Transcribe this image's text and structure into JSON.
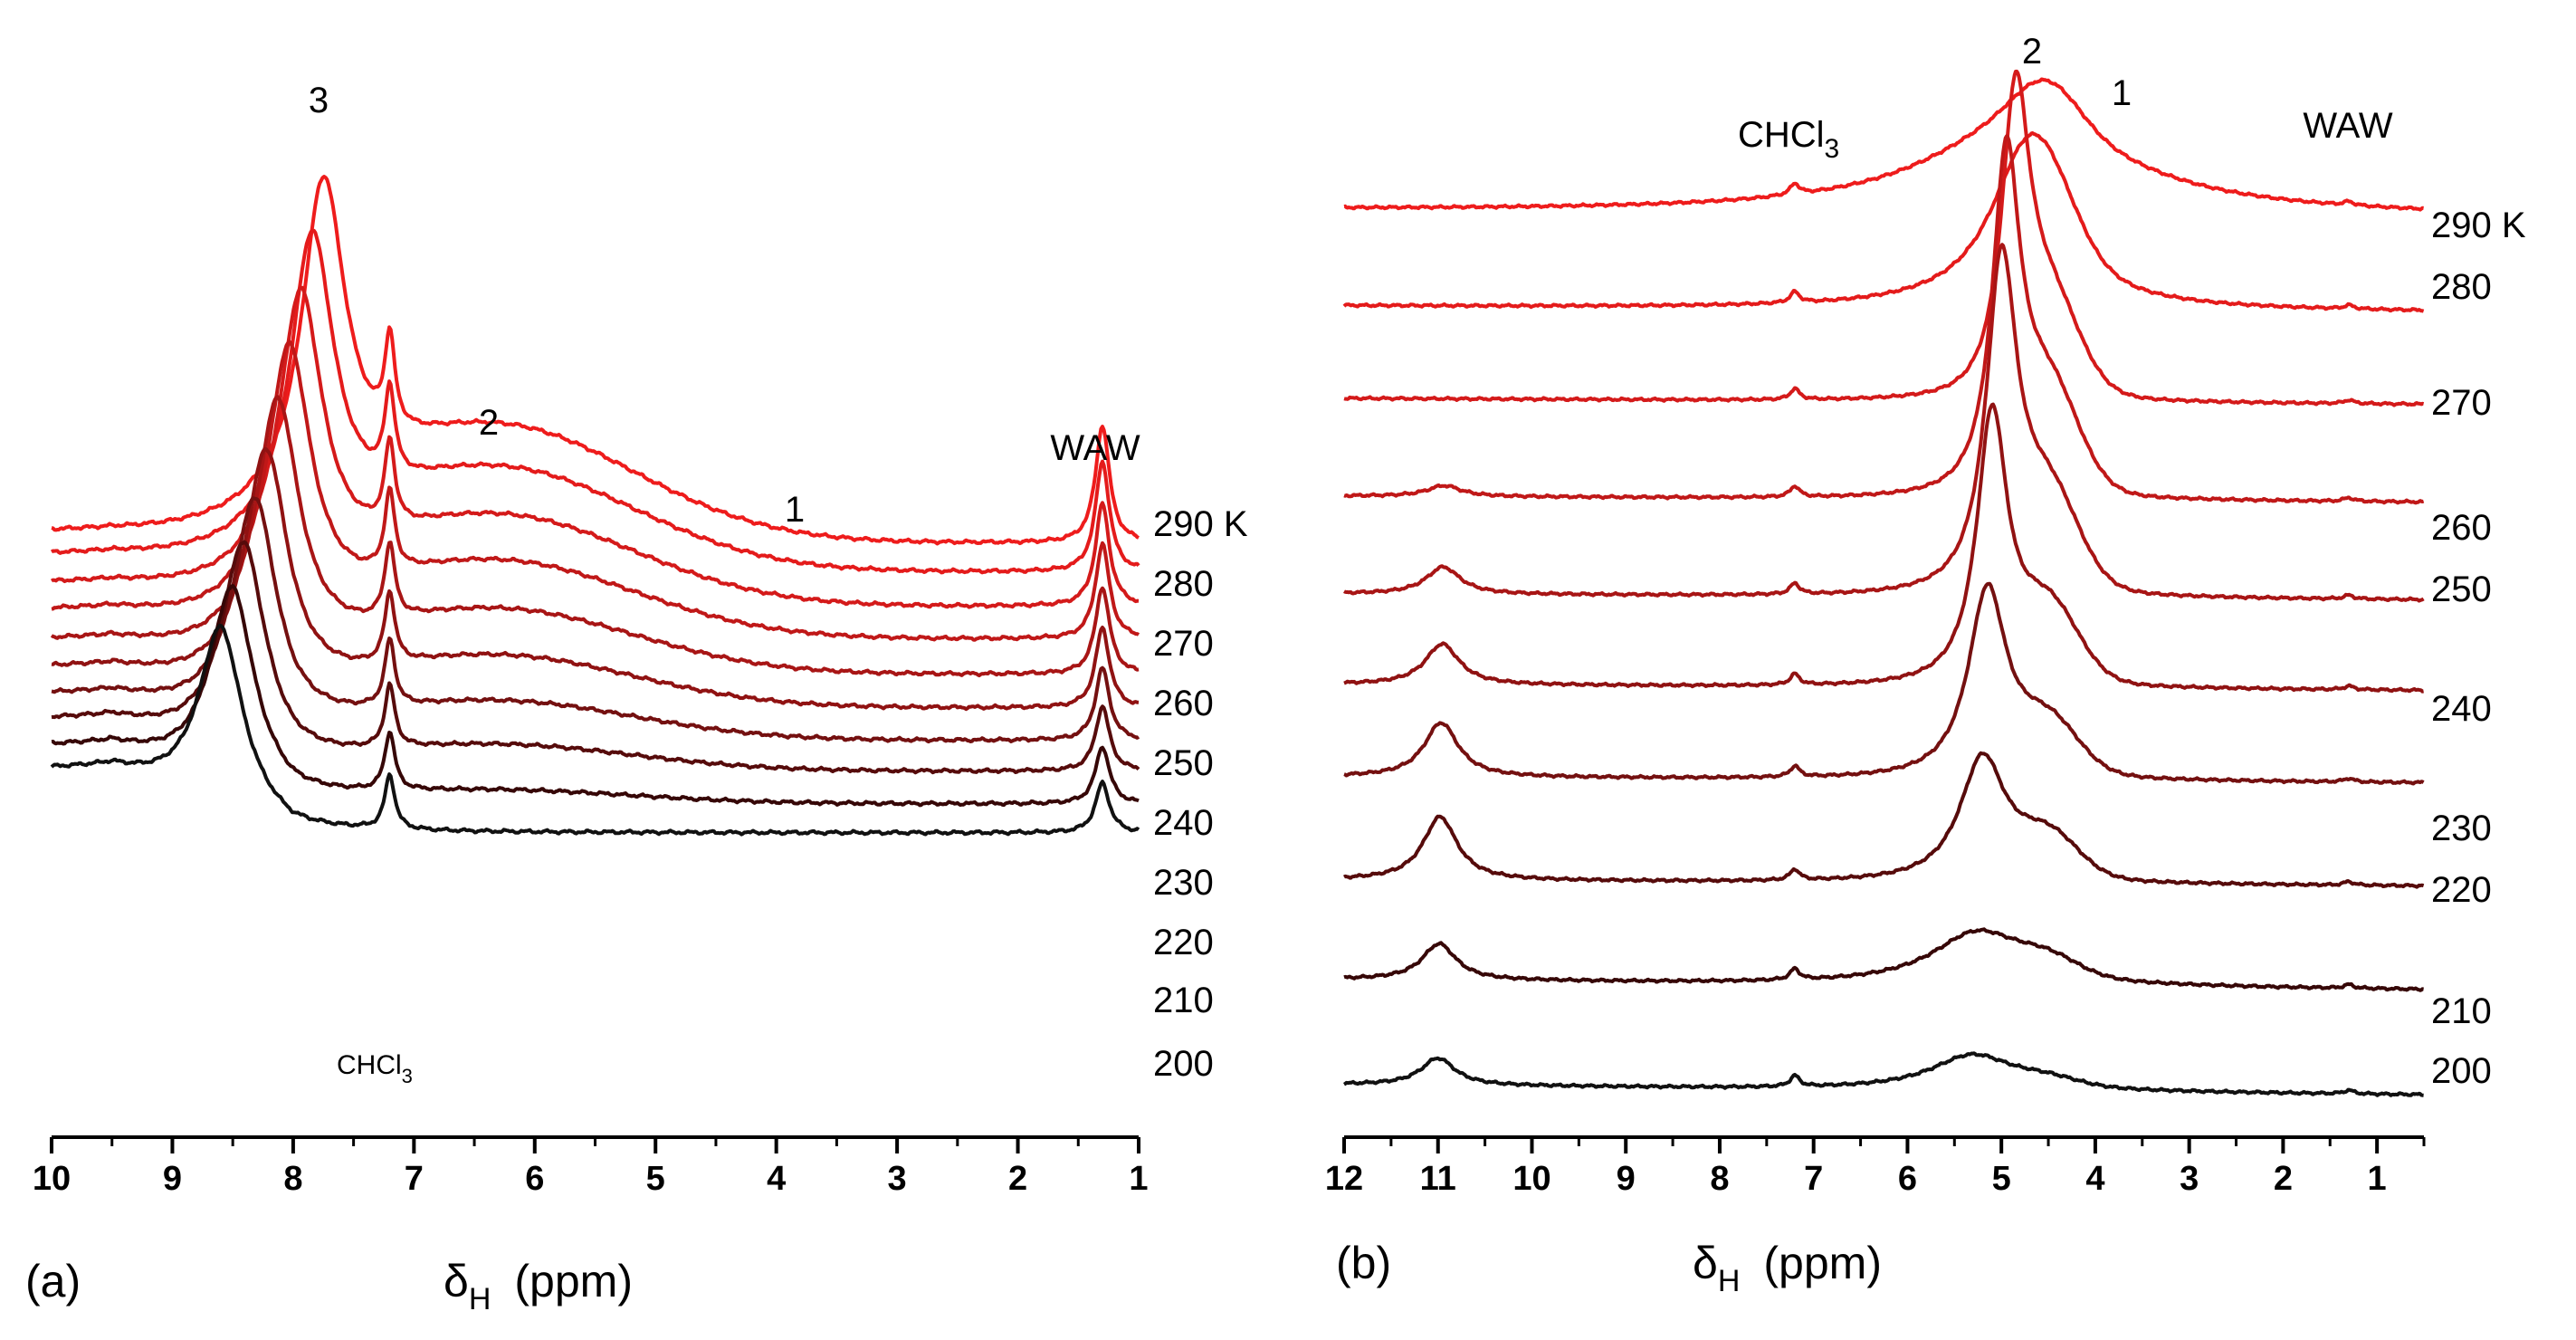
{
  "chart_data": [
    {
      "panel": "(a)",
      "type": "line",
      "title": "",
      "xlabel_main": "δ",
      "xlabel_sub": "H",
      "xlabel_unit": "(ppm)",
      "xlim": [
        10,
        1
      ],
      "xaxis_reversed": true,
      "xticks": [
        "10",
        "9",
        "8",
        "7",
        "6",
        "5",
        "4",
        "3",
        "2",
        "1"
      ],
      "temperature_unit": "K",
      "series_labels": [
        "290 K",
        "280",
        "270",
        "260",
        "250",
        "240",
        "230",
        "220",
        "210",
        "200"
      ],
      "temperatures": [
        290,
        280,
        270,
        260,
        250,
        240,
        230,
        220,
        210,
        200
      ],
      "series_colors": [
        "#ee1c1c",
        "#e41b1b",
        "#d41a1a",
        "#c01818",
        "#a81515",
        "#901212",
        "#741010",
        "#560b0b",
        "#360707",
        "#111111"
      ],
      "annotations": [
        "3",
        "2",
        "1",
        "WAW",
        "CHCl",
        "3"
      ],
      "peaks_ppm": {
        "peak_3": 7.9,
        "chcl3": 7.2,
        "peak_2": 6.3,
        "peak_1": 3.9,
        "waw": 1.3
      }
    },
    {
      "panel": "(b)",
      "type": "line",
      "title": "",
      "xlabel_main": "δ",
      "xlabel_sub": "H",
      "xlabel_unit": "(ppm)",
      "xlim": [
        12,
        0.5
      ],
      "xaxis_reversed": true,
      "xticks": [
        "12",
        "11",
        "10",
        "9",
        "8",
        "7",
        "6",
        "5",
        "4",
        "3",
        "2",
        "1"
      ],
      "temperature_unit": "K",
      "series_labels": [
        "290 K",
        "280",
        "270",
        "260",
        "250",
        "240",
        "230",
        "220",
        "210",
        "200"
      ],
      "temperatures": [
        290,
        280,
        270,
        260,
        250,
        240,
        230,
        220,
        210,
        200
      ],
      "series_colors": [
        "#ee1c1c",
        "#e41b1b",
        "#d41a1a",
        "#c01818",
        "#a81515",
        "#901212",
        "#741010",
        "#560b0b",
        "#360707",
        "#111111"
      ],
      "annotations": [
        "CHCl",
        "3",
        "2",
        "1",
        "WAW"
      ],
      "peaks_ppm": {
        "peak_11": 11.0,
        "chcl3": 7.2,
        "peak_2": 4.9,
        "peak_1": 4.3,
        "waw": 1.3
      }
    }
  ]
}
